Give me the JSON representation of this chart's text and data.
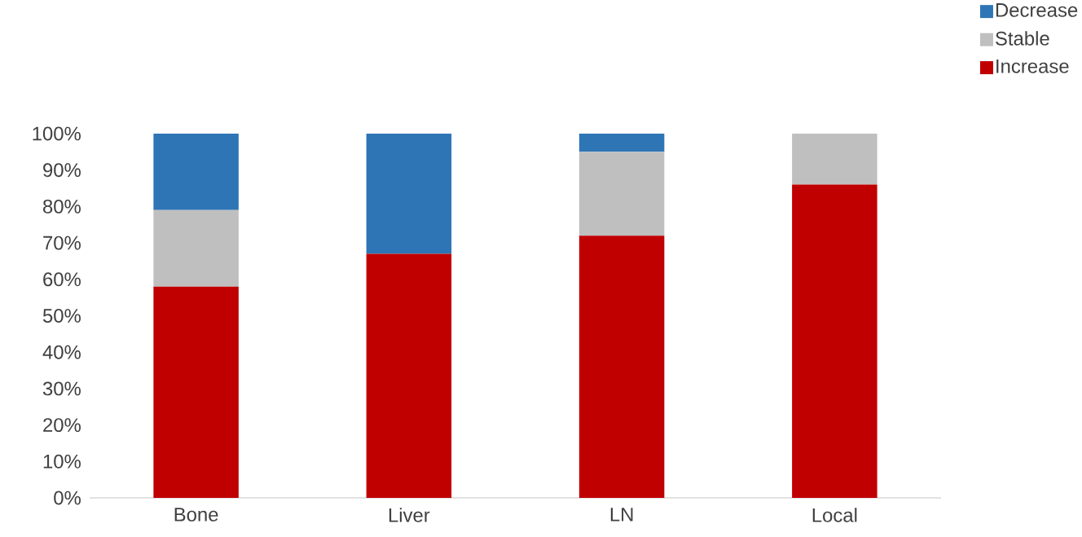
{
  "chart_data": {
    "type": "bar",
    "stacked": true,
    "legend": "top right",
    "categories": [
      "Bone",
      "Liver",
      "LN",
      "Local"
    ],
    "series": [
      {
        "name": "Increase",
        "color": "#c00000",
        "values": [
          58,
          67,
          72,
          86
        ]
      },
      {
        "name": "Stable",
        "color": "#bfbfbf",
        "values": [
          21,
          0,
          23,
          14
        ]
      },
      {
        "name": "Decrease",
        "color": "#2e75b6",
        "values": [
          21,
          33,
          5,
          0
        ]
      }
    ],
    "ylim": [
      0,
      100
    ],
    "yticks": [
      {
        "value": 0,
        "label": "0%"
      },
      {
        "value": 10,
        "label": "10%"
      },
      {
        "value": 20,
        "label": "20%"
      },
      {
        "value": 30,
        "label": "30%"
      },
      {
        "value": 40,
        "label": "40%"
      },
      {
        "value": 50,
        "label": "50%"
      },
      {
        "value": 60,
        "label": "60%"
      },
      {
        "value": 70,
        "label": "70%"
      },
      {
        "value": 80,
        "label": "80%"
      },
      {
        "value": 90,
        "label": "90%"
      },
      {
        "value": 100,
        "label": "100%"
      }
    ]
  }
}
